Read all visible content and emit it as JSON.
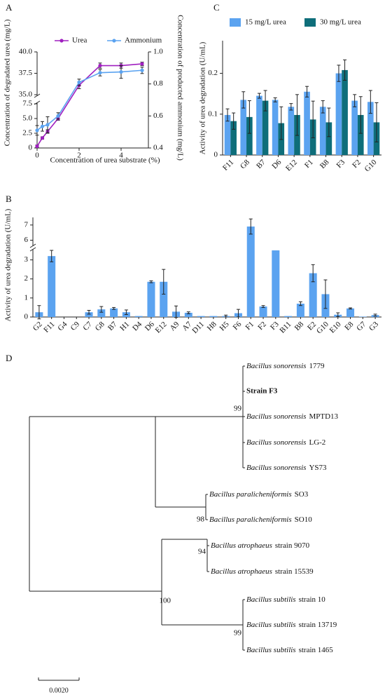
{
  "chart_data": [
    {
      "panel": "A",
      "type": "line",
      "xlabel": "Concentration of urea substrate (%)",
      "ylabel": "Concentration of degradated urea (mg/L)",
      "y2label": "Concentration of producted ammonium (mg/L)",
      "x": [
        0,
        0.25,
        0.5,
        1,
        2,
        3,
        4,
        5
      ],
      "xlim": [
        0,
        5.3
      ],
      "xticks": [
        0,
        2,
        4
      ],
      "ylim": [
        0,
        40
      ],
      "ybreak": [
        7.5,
        35
      ],
      "yticks": [
        0,
        2.5,
        {
          "value": 5,
          "label": "5.0"
        },
        7.5,
        {
          "value": 35,
          "label": "35.0"
        },
        37.5,
        {
          "value": 40,
          "label": "40.0"
        }
      ],
      "y2lim": [
        0.4,
        1.0
      ],
      "y2ticks": [
        0.4,
        0.6,
        0.8,
        {
          "value": 1.0,
          "label": "1.0"
        }
      ],
      "series": [
        {
          "name": "Urea",
          "color": "#a020c0",
          "values": [
            0.3,
            1.7,
            2.8,
            5.0,
            36.1,
            38.4,
            38.4,
            38.6
          ],
          "errors": [
            0.2,
            0.2,
            0.3,
            0.3,
            0.4,
            0.3,
            0.3,
            0.2
          ]
        },
        {
          "name": "Ammonium",
          "color": "#5ba3f0",
          "axis": "y2",
          "values": [
            0.51,
            0.535,
            0.545,
            0.6,
            0.81,
            0.87,
            0.875,
            0.885
          ],
          "errors": [
            0.03,
            0.03,
            0.05,
            0.02,
            0.02,
            0.02,
            0.04,
            0.02
          ]
        }
      ]
    },
    {
      "panel": "C",
      "type": "bar",
      "ylabel": "Activity of urea degradation (U/mL)",
      "categories": [
        "F11",
        "G8",
        "B7",
        "D6",
        "E12",
        "F1",
        "B8",
        "F3",
        "F2",
        "G10"
      ],
      "ylim": [
        0,
        0.28
      ],
      "yticks": [
        0,
        0.1,
        0.2
      ],
      "series": [
        {
          "name": "15 mg/L urea",
          "color": "#5ba3f0",
          "values": [
            0.098,
            0.135,
            0.145,
            0.135,
            0.118,
            0.155,
            0.118,
            0.2,
            0.133,
            0.13
          ],
          "errors": [
            0.015,
            0.02,
            0.006,
            0.005,
            0.008,
            0.013,
            0.015,
            0.02,
            0.015,
            0.028
          ]
        },
        {
          "name": "30 mg/L urea",
          "color": "#0e6e7a",
          "values": [
            0.083,
            0.093,
            0.133,
            0.078,
            0.098,
            0.087,
            0.08,
            0.208,
            0.098,
            0.08
          ],
          "errors": [
            0.02,
            0.04,
            0.025,
            0.04,
            0.05,
            0.045,
            0.035,
            0.025,
            0.045,
            0.048
          ]
        }
      ]
    },
    {
      "panel": "B",
      "type": "bar",
      "ylabel": "Activity of urea degradation (U/mL)",
      "categories": [
        "G2",
        "F11",
        "G4",
        "C9",
        "C7",
        "G8",
        "B7",
        "H1",
        "D4",
        "D6",
        "E12",
        "A9",
        "A7",
        "D11",
        "H8",
        "H5",
        "F6",
        "F1",
        "F2",
        "F3",
        "B11",
        "B8",
        "E2",
        "G10",
        "E10",
        "E8",
        "G7",
        "G3"
      ],
      "ylim": [
        0,
        7.5
      ],
      "ybreak": [
        3.5,
        5.7
      ],
      "yticks": [
        0,
        1,
        2,
        3,
        6,
        7
      ],
      "color": "#5ba3f0",
      "values": [
        0.25,
        3.2,
        0,
        0,
        0.25,
        0.4,
        0.45,
        0.25,
        0.05,
        1.85,
        1.85,
        0.28,
        0.22,
        0.05,
        0.05,
        0.05,
        0.2,
        6.9,
        0.55,
        3.5,
        0.05,
        0.7,
        2.3,
        1.2,
        0.12,
        0.45,
        0.02,
        0.1
      ],
      "errors": [
        0.35,
        0.3,
        null,
        null,
        0.1,
        0.15,
        0.05,
        0.12,
        null,
        0.05,
        0.65,
        0.3,
        0.05,
        null,
        null,
        0.05,
        0.2,
        0.5,
        0.05,
        null,
        null,
        0.1,
        0.45,
        0.75,
        0.1,
        0.03,
        null,
        0.05
      ]
    }
  ],
  "tree": {
    "panel": "D",
    "leaves": [
      {
        "species": "Bacillus sonorensis",
        "strain": "1779"
      },
      {
        "label": "Strain F3"
      },
      {
        "species": "Bacillus sonorensis",
        "strain": "MPTD13"
      },
      {
        "species": "Bacillus sonorensis",
        "strain": "LG-2"
      },
      {
        "species": "Bacillus sonorensis",
        "strain": "YS73"
      },
      {
        "species": "Bacillus paralicheniformis",
        "strain": "SO3"
      },
      {
        "species": "Bacillus paralicheniformis",
        "strain": "SO10"
      },
      {
        "species": "Bacillus atrophaeus",
        "strain": "strain 9070"
      },
      {
        "species": "Bacillus atrophaeus",
        "strain": "strain 15539"
      },
      {
        "species": "Bacillus subtilis",
        "strain": "strain 10"
      },
      {
        "species": "Bacillus subtilis",
        "strain": "strain 13719"
      },
      {
        "species": "Bacillus subtilis",
        "strain": "strain 1465"
      }
    ],
    "bootstrap": [
      99,
      98,
      94,
      100,
      99
    ],
    "scale_label": "0.0020"
  }
}
